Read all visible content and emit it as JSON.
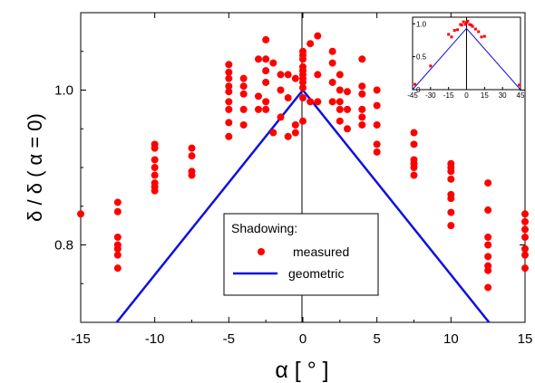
{
  "chart_data": {
    "type": "scatter",
    "xlabel": "α [ ° ]",
    "ylabel": "δ / δ ( α = 0)",
    "xlim": [
      -15,
      15
    ],
    "ylim": [
      0.7,
      1.1
    ],
    "x_ticks": [
      -15,
      -10,
      -5,
      0,
      5,
      10,
      15
    ],
    "x_tick_labels": [
      "-15",
      "-10",
      "-5",
      "0",
      "5",
      "10",
      "15"
    ],
    "y_ticks": [
      0.8,
      1.0
    ],
    "y_tick_labels": [
      "0.8",
      "1.0"
    ],
    "legend": {
      "title": "Shadowing:",
      "placement": "bottom-center",
      "entries": [
        "measured",
        "geometric"
      ]
    },
    "colors": {
      "measured": "#ff0000",
      "geometric": "#1010e0"
    },
    "series": [
      {
        "name": "measured",
        "type": "scatter",
        "points": [
          [
            -15,
            0.84
          ],
          [
            -12.5,
            0.855
          ],
          [
            -12.5,
            0.843
          ],
          [
            -12.5,
            0.81
          ],
          [
            -12.5,
            0.8
          ],
          [
            -12.5,
            0.795
          ],
          [
            -12.5,
            0.787
          ],
          [
            -12.5,
            0.77
          ],
          [
            -10,
            0.93
          ],
          [
            -10,
            0.925
          ],
          [
            -10,
            0.91
          ],
          [
            -10,
            0.9
          ],
          [
            -10,
            0.89
          ],
          [
            -10,
            0.88
          ],
          [
            -10,
            0.875
          ],
          [
            -10,
            0.87
          ],
          [
            -7.5,
            0.925
          ],
          [
            -7.5,
            0.915
          ],
          [
            -7.5,
            0.895
          ],
          [
            -7.5,
            0.89
          ],
          [
            -5,
            1.033
          ],
          [
            -5,
            1.023
          ],
          [
            -5,
            1.015
          ],
          [
            -5,
            1.005
          ],
          [
            -5,
            0.998
          ],
          [
            -5,
            0.985
          ],
          [
            -5,
            0.975
          ],
          [
            -5,
            0.958
          ],
          [
            -5,
            0.94
          ],
          [
            -4,
            1.015
          ],
          [
            -4,
            1.005
          ],
          [
            -4,
            0.995
          ],
          [
            -4,
            0.975
          ],
          [
            -4,
            0.955
          ],
          [
            -3,
            1.04
          ],
          [
            -3,
            0.992
          ],
          [
            -3,
            0.975
          ],
          [
            -2.5,
            1.065
          ],
          [
            -2.5,
            1.04
          ],
          [
            -2.5,
            1.025
          ],
          [
            -2.5,
            1.01
          ],
          [
            -2.5,
            0.985
          ],
          [
            -2.5,
            0.975
          ],
          [
            -2,
            1.035
          ],
          [
            -2,
            0.945
          ],
          [
            -1.5,
            1.02
          ],
          [
            -1.5,
            1.0
          ],
          [
            -1.5,
            0.965
          ],
          [
            -1,
            1.02
          ],
          [
            -1,
            0.99
          ],
          [
            -1,
            0.94
          ],
          [
            -0.5,
            1.015
          ],
          [
            -0.5,
            0.955
          ],
          [
            -0.5,
            0.945
          ],
          [
            0,
            1.05
          ],
          [
            0,
            1.045
          ],
          [
            0,
            1.04
          ],
          [
            0,
            1.03
          ],
          [
            0,
            1.025
          ],
          [
            0,
            1.02
          ],
          [
            0,
            1.015
          ],
          [
            0,
            1.01
          ],
          [
            0,
            1.003
          ],
          [
            0,
            0.99
          ],
          [
            0,
            0.96
          ],
          [
            0.5,
            1.06
          ],
          [
            0.5,
            0.985
          ],
          [
            1,
            1.07
          ],
          [
            1,
            1.02
          ],
          [
            1,
            0.985
          ],
          [
            2,
            1.05
          ],
          [
            2,
            1.035
          ],
          [
            2,
            1.01
          ],
          [
            2,
            0.985
          ],
          [
            2.5,
            1.02
          ],
          [
            2.5,
            1.0
          ],
          [
            2.5,
            0.985
          ],
          [
            2.5,
            0.975
          ],
          [
            2.5,
            0.96
          ],
          [
            3,
            0.998
          ],
          [
            3,
            0.975
          ],
          [
            3,
            0.95
          ],
          [
            4,
            1.04
          ],
          [
            4,
            1.005
          ],
          [
            4,
            0.995
          ],
          [
            4,
            0.975
          ],
          [
            4,
            0.965
          ],
          [
            4,
            0.955
          ],
          [
            5,
            1.0
          ],
          [
            5,
            0.98
          ],
          [
            5,
            0.955
          ],
          [
            5,
            0.93
          ],
          [
            5,
            0.92
          ],
          [
            7.5,
            0.945
          ],
          [
            7.5,
            0.93
          ],
          [
            7.5,
            0.91
          ],
          [
            7.5,
            0.905
          ],
          [
            7.5,
            0.9
          ],
          [
            7.5,
            0.89
          ],
          [
            10,
            0.905
          ],
          [
            10,
            0.9
          ],
          [
            10,
            0.895
          ],
          [
            10,
            0.885
          ],
          [
            10,
            0.865
          ],
          [
            10,
            0.86
          ],
          [
            10,
            0.842
          ],
          [
            10,
            0.825
          ],
          [
            12.5,
            0.88
          ],
          [
            12.5,
            0.845
          ],
          [
            12.5,
            0.81
          ],
          [
            12.5,
            0.8
          ],
          [
            12.5,
            0.785
          ],
          [
            12.5,
            0.773
          ],
          [
            12.5,
            0.767
          ],
          [
            12.5,
            0.745
          ],
          [
            15,
            0.84
          ],
          [
            15,
            0.83
          ],
          [
            15,
            0.82
          ],
          [
            15,
            0.81
          ],
          [
            15,
            0.795
          ],
          [
            15,
            0.787
          ],
          [
            15,
            0.77
          ]
        ]
      },
      {
        "name": "geometric",
        "type": "line",
        "points": [
          [
            -15,
            0.642
          ],
          [
            0,
            1.0
          ],
          [
            15,
            0.642
          ]
        ]
      }
    ],
    "inset": {
      "type": "scatter",
      "xlim": [
        -45,
        45
      ],
      "ylim": [
        0,
        1.1
      ],
      "x_tick_labels": [
        "-45",
        "-30",
        "-15",
        "0",
        "15",
        "30",
        "45"
      ],
      "y_tick_labels": [
        "0",
        "0.5",
        "1.0"
      ],
      "measured_points": [
        [
          -43,
          0.08
        ],
        [
          -30,
          0.36
        ],
        [
          -15,
          0.84
        ],
        [
          -12.5,
          0.8
        ],
        [
          -10,
          0.9
        ],
        [
          -7.5,
          0.91
        ],
        [
          -5,
          0.99
        ],
        [
          -4,
          0.98
        ],
        [
          -2.5,
          1.03
        ],
        [
          -1,
          0.99
        ],
        [
          0,
          1.02
        ],
        [
          1,
          1.04
        ],
        [
          2.5,
          0.99
        ],
        [
          4,
          0.98
        ],
        [
          5,
          0.96
        ],
        [
          7.5,
          0.92
        ],
        [
          10,
          0.88
        ],
        [
          12.5,
          0.8
        ],
        [
          15,
          0.81
        ],
        [
          44,
          0.07
        ]
      ],
      "geometric_points": [
        [
          -45,
          0
        ],
        [
          0,
          0.93
        ],
        [
          45,
          0
        ]
      ]
    }
  }
}
